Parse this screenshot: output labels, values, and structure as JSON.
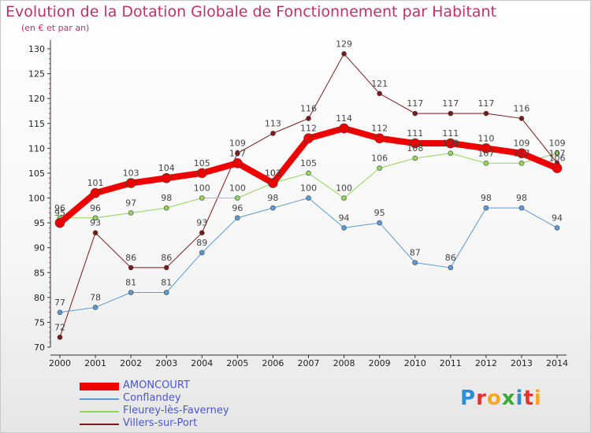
{
  "header": {
    "title": "Evolution de la Dotation Globale de Fonctionnement par Habitant",
    "subtitle": "(en € et par an)"
  },
  "logo": {
    "text": "Proxiti",
    "letters": [
      {
        "ch": "P",
        "color": "#2b8fd6"
      },
      {
        "ch": "r",
        "color": "#e2342d"
      },
      {
        "ch": "o",
        "color": "#f5a623"
      },
      {
        "ch": "x",
        "color": "#3ba935"
      },
      {
        "ch": "i",
        "color": "#2b8fd6"
      },
      {
        "ch": "t",
        "color": "#e2342d"
      },
      {
        "ch": "i",
        "color": "#f5a623"
      }
    ]
  },
  "chart_data": {
    "type": "line",
    "x": [
      2000,
      2001,
      2002,
      2003,
      2004,
      2005,
      2006,
      2007,
      2008,
      2009,
      2010,
      2011,
      2012,
      2013,
      2014
    ],
    "ylim": [
      70,
      130
    ],
    "yticks": [
      70,
      75,
      80,
      85,
      90,
      95,
      100,
      105,
      110,
      115,
      120,
      125,
      130
    ],
    "grid": false,
    "legend_position": "bottom-left",
    "series": [
      {
        "name": "Villers-sur-Port",
        "color": "#7a1a1a",
        "width": 1,
        "values": [
          72,
          93,
          86,
          86,
          93,
          109,
          113,
          116,
          129,
          121,
          117,
          117,
          117,
          116,
          107
        ]
      },
      {
        "name": "Fleurey-lès-Faverney",
        "color": "#8fd65a",
        "width": 1,
        "values": [
          96,
          96,
          97,
          98,
          100,
          100,
          103,
          105,
          100,
          106,
          108,
          109,
          107,
          107,
          109
        ]
      },
      {
        "name": "Conflandey",
        "color": "#5b9bd5",
        "width": 1,
        "values": [
          77,
          78,
          81,
          81,
          89,
          96,
          98,
          100,
          94,
          95,
          87,
          86,
          98,
          98,
          94
        ]
      },
      {
        "name": "AMONCOURT",
        "color": "#ee0000",
        "width": 8,
        "values": [
          95,
          101,
          103,
          104,
          105,
          107,
          103,
          112,
          114,
          112,
          111,
          111,
          110,
          109,
          106
        ]
      }
    ]
  }
}
